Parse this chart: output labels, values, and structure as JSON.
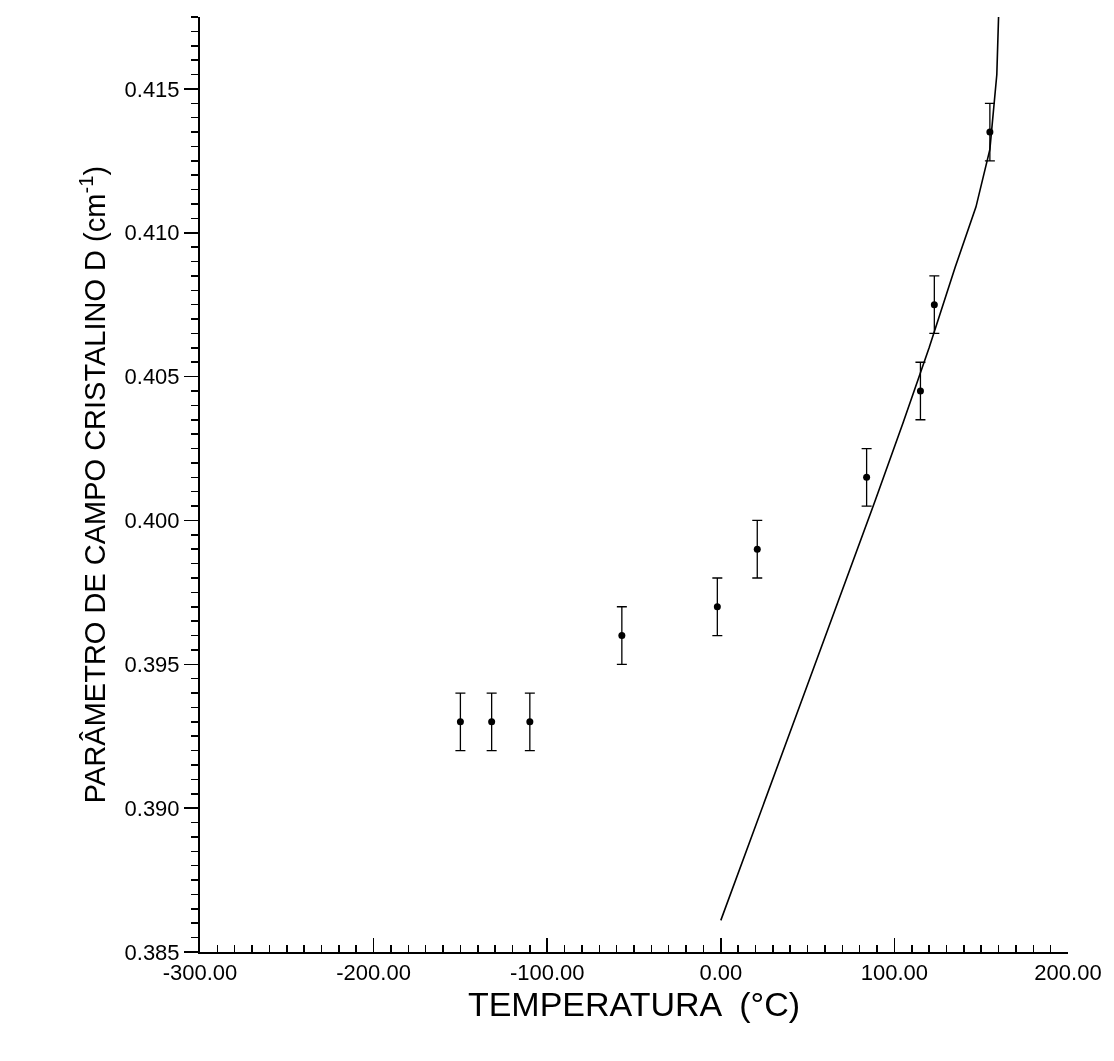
{
  "chart_data": {
    "type": "scatter",
    "xlabel": "TEMPERATURA  (°C)",
    "ylabel": "PARÂMETRO DE CAMPO CRISTALINO D (cm$^{-1}$)",
    "xlim": [
      -300,
      200
    ],
    "ylim": [
      0.385,
      0.4175
    ],
    "xticks": [
      {
        "value": -300,
        "label": "-300.00"
      },
      {
        "value": -200,
        "label": "-200.00"
      },
      {
        "value": -100,
        "label": "-100.00"
      },
      {
        "value": 0,
        "label": "0.00"
      },
      {
        "value": 100,
        "label": "100.00"
      },
      {
        "value": 200,
        "label": "200.00"
      }
    ],
    "yticks": [
      0.385,
      {
        "value": 0.39,
        "label": "0.390"
      },
      0.395,
      {
        "value": 0.4,
        "label": "0.400"
      },
      0.405,
      {
        "value": 0.41,
        "label": "0.410"
      },
      0.415
    ],
    "grid": false,
    "series": [
      {
        "marker": "circle",
        "color": "#000000",
        "x": [
          -150,
          -132,
          -110,
          -57,
          -2,
          21,
          84,
          115,
          123,
          155
        ],
        "values": [
          0.393,
          0.393,
          0.393,
          0.396,
          0.397,
          0.399,
          0.4015,
          0.4045,
          0.4075,
          0.4135
        ],
        "errors": [
          0.001,
          0.001,
          0.001,
          0.001,
          0.001,
          0.001,
          0.001,
          0.001,
          0.001,
          0.001
        ]
      },
      {
        "type": "line",
        "color": "#000000",
        "line_style": "solid",
        "x": [
          0,
          50,
          89,
          105,
          120,
          135,
          147,
          155,
          159,
          160
        ],
        "values": [
          0.3861,
          0.3943,
          0.4007,
          0.4034,
          0.406,
          0.4088,
          0.4109,
          0.4129,
          0.4155,
          0.4175
        ]
      }
    ]
  }
}
